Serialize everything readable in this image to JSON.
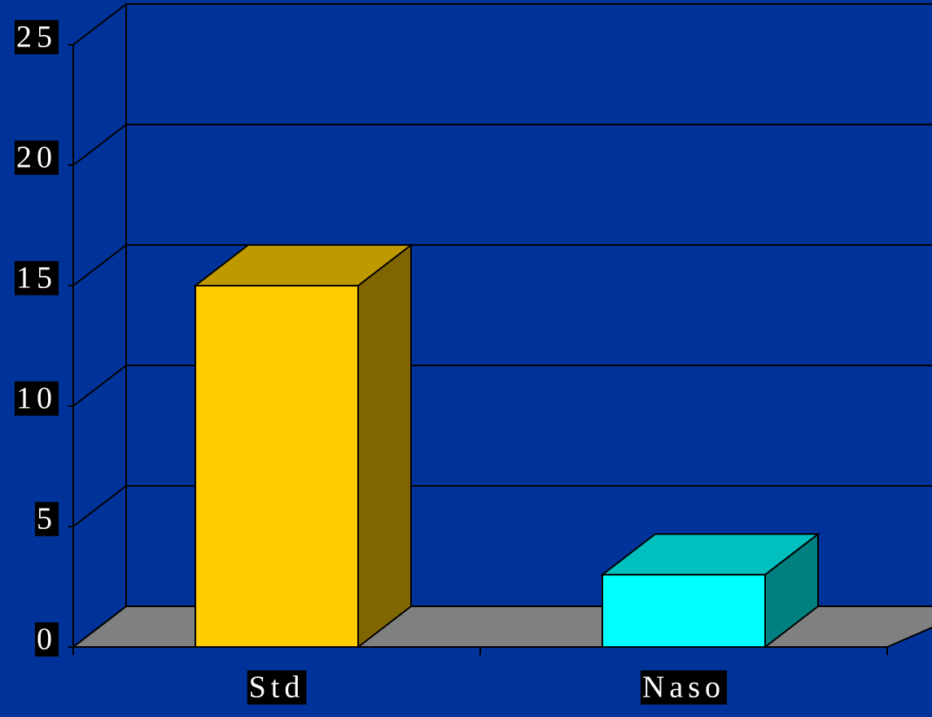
{
  "chart_data": {
    "type": "bar3d",
    "categories": [
      "Std",
      "Naso"
    ],
    "values": [
      15,
      3
    ],
    "colors": [
      "#ffcc00",
      "#00ffff"
    ],
    "ylim": [
      0,
      25
    ],
    "yticks": [
      0,
      5,
      10,
      15,
      20,
      25
    ],
    "grid": true
  }
}
